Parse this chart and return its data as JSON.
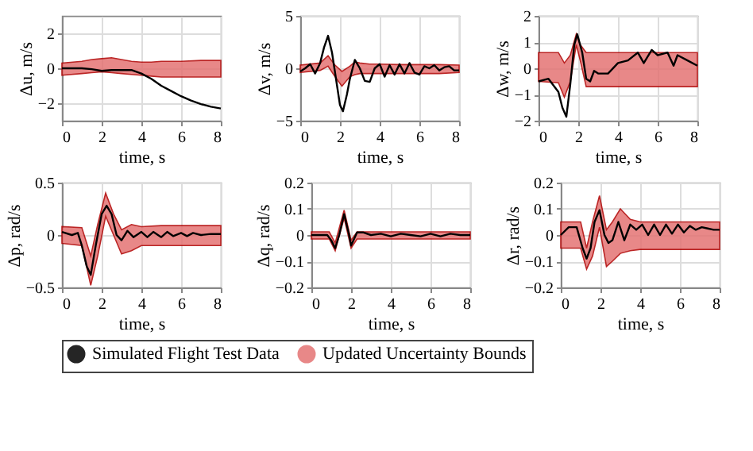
{
  "chart_data": [
    {
      "type": "line",
      "xlabel": "time, s",
      "ylabel": "Δu, m/s",
      "xlim": [
        0,
        8
      ],
      "xticks": [
        0,
        2,
        4,
        6,
        8
      ],
      "ylim": [
        -3,
        3
      ],
      "yticks": [
        -2,
        0,
        2
      ],
      "grid": true,
      "legend": "bottom",
      "series": [
        {
          "name": "Simulated Flight Test Data",
          "color": "#000000",
          "x": [
            0,
            1,
            1.5,
            2,
            2.5,
            3,
            3.5,
            4,
            4.5,
            5,
            5.5,
            6,
            6.5,
            7,
            7.5,
            8
          ],
          "values": [
            0,
            0,
            -0.05,
            -0.15,
            -0.1,
            -0.1,
            -0.1,
            -0.3,
            -0.6,
            -1.0,
            -1.3,
            -1.6,
            -1.85,
            -2.05,
            -2.2,
            -2.3
          ]
        },
        {
          "name": "Updated Uncertainty Bounds",
          "type": "area",
          "color": "#e47474",
          "x": [
            0,
            1,
            1.5,
            2,
            2.5,
            3,
            3.5,
            4,
            4.5,
            5,
            6,
            7,
            8
          ],
          "values": [
            null,
            null,
            null,
            null,
            null,
            null,
            null,
            null,
            null,
            null,
            null,
            null,
            null
          ],
          "lower": [
            -0.4,
            -0.3,
            -0.25,
            -0.2,
            -0.25,
            -0.3,
            -0.35,
            -0.4,
            -0.45,
            -0.5,
            -0.5,
            -0.5,
            -0.5
          ],
          "upper": [
            0.3,
            0.4,
            0.5,
            0.55,
            0.6,
            0.5,
            0.4,
            0.35,
            0.35,
            0.4,
            0.4,
            0.45,
            0.45
          ]
        }
      ]
    },
    {
      "type": "line",
      "xlabel": "time, s",
      "ylabel": "Δv, m/s",
      "xlim": [
        0,
        8
      ],
      "xticks": [
        0,
        2,
        4,
        6,
        8
      ],
      "ylim": [
        -5,
        5
      ],
      "yticks": [
        -5,
        0,
        5
      ],
      "grid": true,
      "series": [
        {
          "color": "#000000",
          "x": [
            0,
            0.25,
            0.5,
            0.75,
            1,
            1.2,
            1.4,
            1.6,
            1.8,
            2,
            2.15,
            2.35,
            2.5,
            2.75,
            3,
            3.25,
            3.5,
            3.75,
            4,
            4.25,
            4.5,
            4.75,
            5,
            5.25,
            5.5,
            5.75,
            6,
            6.25,
            6.5,
            6.75,
            7,
            7.25,
            7.5,
            7.75,
            8
          ],
          "values": [
            -0.3,
            0,
            0.4,
            -0.5,
            0.5,
            2.0,
            3.1,
            1.5,
            -1.0,
            -3.5,
            -4.1,
            -2.5,
            -1.0,
            0.8,
            0,
            -1.2,
            -1.3,
            0,
            0.4,
            -0.8,
            0.3,
            -0.6,
            0.4,
            -0.5,
            0.5,
            -0.4,
            -0.6,
            0.2,
            0,
            0.3,
            -0.2,
            0.1,
            0.2,
            -0.2,
            -0.2
          ]
        },
        {
          "type": "area",
          "color": "#e47474",
          "x": [
            0,
            1,
            1.4,
            1.75,
            2.1,
            2.5,
            2.75,
            3,
            3.5,
            4,
            5,
            6,
            7,
            8
          ],
          "values": [
            null,
            null,
            null,
            null,
            null,
            null,
            null,
            null,
            null,
            null,
            null,
            null,
            null,
            null
          ],
          "lower": [
            -0.4,
            -0.2,
            0.2,
            -0.8,
            -1.7,
            -0.8,
            -0.6,
            -0.5,
            -0.5,
            -0.5,
            -0.5,
            -0.5,
            -0.5,
            -0.4
          ],
          "upper": [
            0.3,
            0.5,
            1.2,
            0.3,
            -0.3,
            0.2,
            0.6,
            0.5,
            0.4,
            0.4,
            0.35,
            0.35,
            0.35,
            0.3
          ]
        }
      ]
    },
    {
      "type": "line",
      "xlabel": "time, s",
      "ylabel": "Δw, m/s",
      "xlim": [
        0,
        8
      ],
      "xticks": [
        0,
        2,
        4,
        6,
        8
      ],
      "ylim": [
        -2,
        2
      ],
      "yticks": [
        -2,
        -1,
        0,
        1,
        2
      ],
      "grid": true,
      "series": [
        {
          "color": "#000000",
          "x": [
            0,
            0.5,
            1,
            1.2,
            1.4,
            1.6,
            1.8,
            1.95,
            2.2,
            2.4,
            2.6,
            2.8,
            3,
            3.5,
            4,
            4.5,
            5,
            5.3,
            5.7,
            6,
            6.5,
            6.8,
            7,
            7.5,
            8
          ],
          "values": [
            -0.5,
            -0.4,
            -0.9,
            -1.5,
            -1.85,
            -0.6,
            0.9,
            1.3,
            0.6,
            -0.4,
            -0.5,
            -0.1,
            -0.2,
            -0.2,
            0.2,
            0.3,
            0.6,
            0.2,
            0.7,
            0.5,
            0.6,
            0.1,
            0.5,
            0.3,
            0.1
          ]
        },
        {
          "type": "area",
          "color": "#e47474",
          "x": [
            0,
            1,
            1.3,
            1.6,
            1.9,
            2.1,
            2.4,
            3,
            4,
            5,
            6,
            7,
            8
          ],
          "values": [
            null,
            null,
            null,
            null,
            null,
            null,
            null,
            null,
            null,
            null,
            null,
            null,
            null
          ],
          "lower": [
            -0.5,
            -0.55,
            -1.1,
            -0.5,
            0.9,
            0.3,
            -0.7,
            -0.7,
            -0.7,
            -0.7,
            -0.7,
            -0.7,
            -0.7
          ],
          "upper": [
            0.6,
            0.6,
            0.2,
            0.5,
            1.3,
            0.9,
            0.6,
            0.6,
            0.6,
            0.6,
            0.6,
            0.6,
            0.6
          ]
        }
      ]
    },
    {
      "type": "line",
      "xlabel": "time, s",
      "ylabel": "Δp, rad/s",
      "xlim": [
        0,
        8
      ],
      "xticks": [
        0,
        2,
        4,
        6,
        8
      ],
      "ylim": [
        -0.5,
        0.5
      ],
      "yticks": [
        -0.5,
        0,
        0.5
      ],
      "grid": true,
      "series": [
        {
          "color": "#000000",
          "x": [
            0,
            0.5,
            0.8,
            1,
            1.25,
            1.45,
            1.7,
            2,
            2.25,
            2.5,
            2.75,
            3,
            3.3,
            3.6,
            4,
            4.3,
            4.6,
            5,
            5.3,
            5.6,
            6,
            6.3,
            6.6,
            7,
            7.5,
            8
          ],
          "values": [
            0.03,
            0,
            0.02,
            -0.1,
            -0.3,
            -0.38,
            -0.1,
            0.2,
            0.28,
            0.2,
            0,
            -0.05,
            0.04,
            -0.02,
            0.03,
            -0.02,
            0.03,
            -0.02,
            0.03,
            -0.01,
            0.02,
            -0.01,
            0.02,
            0,
            0.01,
            0.01
          ]
        },
        {
          "type": "area",
          "color": "#e47474",
          "x": [
            0,
            1,
            1.45,
            1.8,
            2.2,
            2.6,
            3,
            3.5,
            4,
            5,
            6,
            7,
            8
          ],
          "values": [
            null,
            null,
            null,
            null,
            null,
            null,
            null,
            null,
            null,
            null,
            null,
            null,
            null
          ],
          "lower": [
            -0.08,
            -0.1,
            -0.48,
            -0.2,
            0.18,
            0,
            -0.18,
            -0.15,
            -0.1,
            -0.1,
            -0.1,
            -0.1,
            -0.1
          ],
          "upper": [
            0.08,
            0.07,
            -0.2,
            0.1,
            0.4,
            0.2,
            0.05,
            0.1,
            0.08,
            0.09,
            0.09,
            0.09,
            0.09
          ]
        }
      ]
    },
    {
      "type": "line",
      "xlabel": "time, s",
      "ylabel": "Δq, rad/s",
      "xlim": [
        0,
        8
      ],
      "xticks": [
        0,
        2,
        4,
        6,
        8
      ],
      "ylim": [
        -0.2,
        0.2
      ],
      "yticks": [
        -0.2,
        -0.1,
        0,
        0.1,
        0.2
      ],
      "grid": true,
      "series": [
        {
          "color": "#000000",
          "x": [
            0,
            0.8,
            1,
            1.2,
            1.4,
            1.65,
            1.9,
            2,
            2.3,
            2.6,
            3,
            3.5,
            4,
            4.5,
            5,
            5.5,
            6,
            6.5,
            7,
            7.5,
            8
          ],
          "values": [
            0,
            0,
            -0.02,
            -0.05,
            0,
            0.08,
            0,
            -0.04,
            0.01,
            0.01,
            0,
            0.005,
            -0.005,
            0.005,
            0,
            -0.005,
            0.005,
            -0.005,
            0.005,
            0,
            0
          ]
        },
        {
          "type": "area",
          "color": "#e47474",
          "x": [
            0,
            0.9,
            1.2,
            1.65,
            2,
            2.3,
            3,
            4,
            5,
            6,
            7,
            8
          ],
          "values": [
            null,
            null,
            null,
            null,
            null,
            null,
            null,
            null,
            null,
            null,
            null,
            null
          ],
          "lower": [
            -0.015,
            -0.015,
            -0.06,
            0.065,
            -0.05,
            -0.015,
            -0.015,
            -0.015,
            -0.015,
            -0.015,
            -0.015,
            -0.015
          ],
          "upper": [
            0.012,
            0.012,
            -0.03,
            0.095,
            -0.02,
            0.012,
            0.012,
            0.012,
            0.012,
            0.012,
            0.012,
            0.012
          ]
        }
      ]
    },
    {
      "type": "line",
      "xlabel": "time, s",
      "ylabel": "Δr, rad/s",
      "xlim": [
        0,
        8
      ],
      "xticks": [
        0,
        2,
        4,
        6,
        8
      ],
      "ylim": [
        -0.2,
        0.2
      ],
      "yticks": [
        -0.2,
        -0.1,
        0,
        0.1,
        0.2
      ],
      "grid": true,
      "series": [
        {
          "color": "#000000",
          "x": [
            0,
            0.4,
            0.8,
            1.1,
            1.3,
            1.5,
            1.7,
            1.95,
            2.2,
            2.4,
            2.6,
            2.9,
            3.2,
            3.5,
            3.8,
            4.1,
            4.4,
            4.7,
            5,
            5.3,
            5.6,
            5.9,
            6.2,
            6.5,
            6.8,
            7.1,
            7.4,
            7.7,
            8
          ],
          "values": [
            0,
            0.03,
            0.03,
            -0.05,
            -0.09,
            -0.05,
            0.05,
            0.095,
            0,
            -0.03,
            -0.02,
            0.05,
            -0.02,
            0.04,
            0.02,
            0.04,
            0,
            0.04,
            0,
            0.04,
            0.005,
            0.04,
            0.01,
            0.035,
            0.02,
            0.03,
            0.025,
            0.02,
            0.02
          ]
        },
        {
          "type": "area",
          "color": "#e47474",
          "x": [
            0,
            1,
            1.3,
            1.6,
            1.95,
            2.3,
            2.6,
            3,
            3.5,
            4,
            5,
            6,
            7,
            8
          ],
          "values": [
            null,
            null,
            null,
            null,
            null,
            null,
            null,
            null,
            null,
            null,
            null,
            null,
            null,
            null
          ],
          "lower": [
            -0.05,
            -0.05,
            -0.13,
            -0.08,
            0.03,
            -0.12,
            -0.1,
            -0.07,
            -0.06,
            -0.055,
            -0.055,
            -0.055,
            -0.055,
            -0.055
          ],
          "upper": [
            0.05,
            0.05,
            -0.05,
            0.05,
            0.15,
            0.02,
            0.05,
            0.1,
            0.06,
            0.05,
            0.05,
            0.05,
            0.05,
            0.05
          ]
        }
      ]
    }
  ]
}
